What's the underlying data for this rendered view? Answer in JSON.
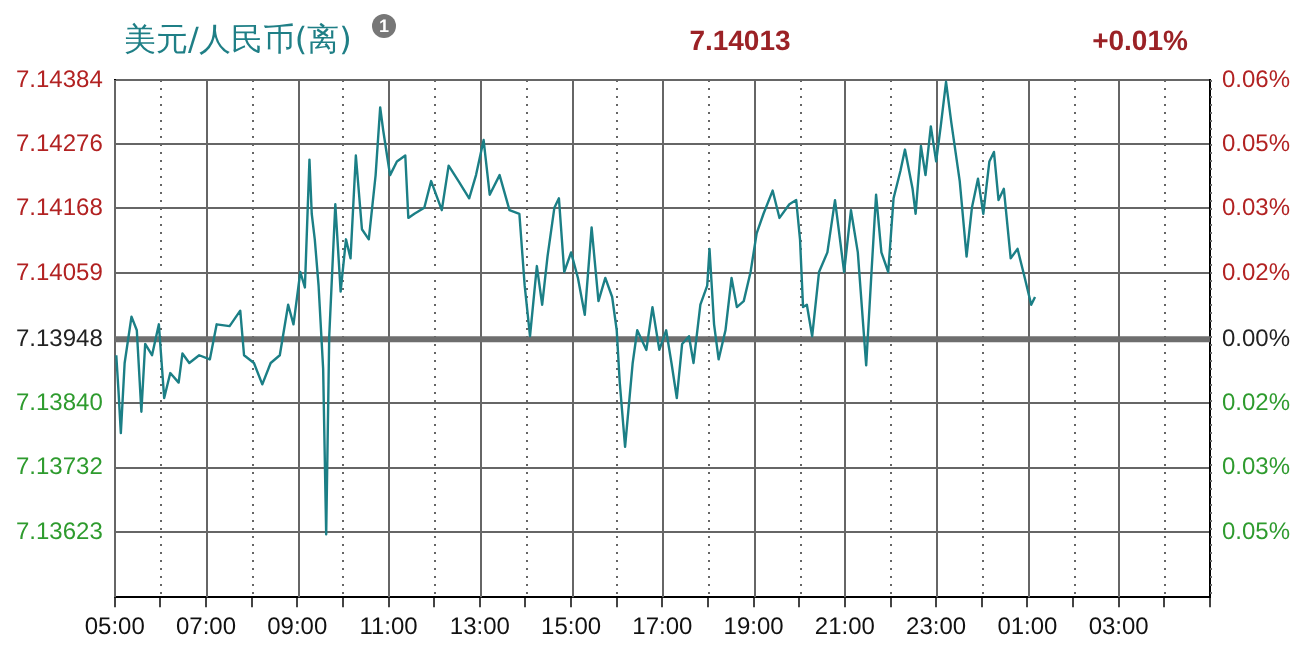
{
  "chart_data": {
    "type": "line",
    "title": "美元/人民币(离)",
    "annotations": [
      "1",
      "7.14013",
      "+0.01%"
    ],
    "x": [
      "--01-01T05:02",
      "--01-01T05:05",
      "--01-01T05:08",
      "--01-01T05:13",
      "--01-01T05:22",
      "--01-01T05:29",
      "--01-01T05:35",
      "--01-01T05:40",
      "--01-01T05:49",
      "--01-01T05:58",
      "--01-01T06:05",
      "--01-01T06:13",
      "--01-01T06:24",
      "--01-01T06:29",
      "--01-01T06:38",
      "--01-01T06:51",
      "--01-01T07:05",
      "--01-01T07:14",
      "--01-01T07:31",
      "--01-01T07:45",
      "--01-01T07:50",
      "--01-01T08:03",
      "--01-01T08:14",
      "--01-01T08:25",
      "--01-01T08:37",
      "--01-01T08:48",
      "--01-01T08:55",
      "--01-01T09:04",
      "--01-01T09:10",
      "--01-01T09:16",
      "--01-01T09:19",
      "--01-01T09:23",
      "--01-01T09:28",
      "--01-01T09:34",
      "--01-01T09:38",
      "--01-01T09:42",
      "--01-01T09:50",
      "--01-01T09:57",
      "--01-01T10:04",
      "--01-01T10:10",
      "--01-01T10:17",
      "--01-01T10:25",
      "--01-01T10:34",
      "--01-01T10:43",
      "--01-01T10:49",
      "--01-01T10:53",
      "--01-01T10:58",
      "--01-01T11:02",
      "--01-01T11:11",
      "--01-01T11:22",
      "--01-01T11:26",
      "--01-01T11:34",
      "--01-01T11:47",
      "--01-01T11:56",
      "--01-01T12:10",
      "--01-01T12:19",
      "--01-01T12:32",
      "--01-01T12:46",
      "--01-01T12:55",
      "--01-01T13:05",
      "--01-01T13:13",
      "--01-01T13:26",
      "--01-01T13:39",
      "--01-01T13:52",
      "--01-01T13:59",
      "--01-01T14:06",
      "--01-01T14:15",
      "--01-01T14:22",
      "--01-01T14:29",
      "--01-01T14:38",
      "--01-01T14:44",
      "--01-01T14:51",
      "--01-01T15:00",
      "--01-01T15:09",
      "--01-01T15:18",
      "--01-01T15:27",
      "--01-01T15:36",
      "--01-01T15:45",
      "--01-01T15:54",
      "--01-01T16:00",
      "--01-01T16:04",
      "--01-01T16:11",
      "--01-01T16:21",
      "--01-01T16:27",
      "--01-01T16:39",
      "--01-01T16:47",
      "--01-01T16:56",
      "--01-01T17:05",
      "--01-01T17:12",
      "--01-01T17:19",
      "--01-01T17:26",
      "--01-01T17:35",
      "--01-01T17:41",
      "--01-01T17:50",
      "--01-01T17:59",
      "--01-01T18:02",
      "--01-01T18:08",
      "--01-01T18:14",
      "--01-01T18:23",
      "--01-01T18:31",
      "--01-01T18:38",
      "--01-01T18:47",
      "--01-01T18:56",
      "--01-01T19:04",
      "--01-01T19:13",
      "--01-01T19:25",
      "--01-01T19:34",
      "--01-01T19:47",
      "--01-01T19:56",
      "--01-01T20:01",
      "--01-01T20:05",
      "--01-01T20:10",
      "--01-01T20:17",
      "--01-01T20:26",
      "--01-01T20:37",
      "--01-01T20:47",
      "--01-01T20:59",
      "--01-01T21:08",
      "--01-01T21:17",
      "--01-01T21:28",
      "--01-01T21:35",
      "--01-01T21:41",
      "--01-01T21:48",
      "--01-01T21:57",
      "--01-01T22:04",
      "--01-01T22:13",
      "--01-01T22:19",
      "--01-01T22:29",
      "--01-01T22:33",
      "--01-01T22:40",
      "--01-01T22:46",
      "--01-01T22:53",
      "--01-01T23:00",
      "--01-01T23:06",
      "--01-01T23:13",
      "--01-01T23:20",
      "--01-01T23:31",
      "--01-01T23:40",
      "--01-01T23:47",
      "--01-01T23:55",
      "--01-02T00:02",
      "--01-02T00:10",
      "--01-02T00:16",
      "--01-02T00:22",
      "--01-02T00:29",
      "--01-02T00:38",
      "--01-02T00:47",
      "--01-02T00:56",
      "--01-02T01:05",
      "--01-02T01:10"
    ],
    "series": [
      {
        "color": "#1b7f86",
        "values": [
          7.13921,
          7.13859,
          7.1379,
          7.13908,
          7.13986,
          7.13963,
          7.13826,
          7.1394,
          7.13921,
          7.13973,
          7.13849,
          7.13891,
          7.13875,
          7.13924,
          7.13908,
          7.13921,
          7.13914,
          7.13973,
          7.1397,
          7.13996,
          7.13921,
          7.13908,
          7.13872,
          7.13908,
          7.13921,
          7.14006,
          7.13973,
          7.14061,
          7.14035,
          7.1425,
          7.14159,
          7.14116,
          7.14038,
          7.13898,
          7.1362,
          7.13953,
          7.14175,
          7.14028,
          7.14116,
          7.14084,
          7.14257,
          7.14133,
          7.14116,
          7.14224,
          7.14338,
          7.14299,
          7.14257,
          7.14224,
          7.14247,
          7.14257,
          7.14152,
          7.14159,
          7.14169,
          7.14214,
          7.14165,
          7.1424,
          7.14214,
          7.14185,
          7.14224,
          7.14283,
          7.14191,
          7.14224,
          7.14165,
          7.14159,
          7.14038,
          7.13953,
          7.14071,
          7.14006,
          7.14087,
          7.14169,
          7.14185,
          7.14061,
          7.14094,
          7.14051,
          7.13989,
          7.14136,
          7.14012,
          7.14051,
          7.14019,
          7.13963,
          7.13875,
          7.13767,
          7.13908,
          7.13963,
          7.1393,
          7.14002,
          7.1393,
          7.13963,
          7.13908,
          7.13849,
          7.1394,
          7.13953,
          7.13908,
          7.14006,
          7.14038,
          7.141,
          7.13973,
          7.13914,
          7.13963,
          7.14051,
          7.14002,
          7.14012,
          7.14061,
          7.14126,
          7.14159,
          7.14198,
          7.14152,
          7.14175,
          7.14182,
          7.14116,
          7.14002,
          7.14006,
          7.13953,
          7.14061,
          7.14094,
          7.14182,
          7.14061,
          7.14165,
          7.14094,
          7.13904,
          7.14061,
          7.14191,
          7.14094,
          7.14061,
          7.14185,
          7.14231,
          7.14267,
          7.14201,
          7.14159,
          7.14273,
          7.14224,
          7.14306,
          7.14247,
          7.14306,
          7.14381,
          7.14312,
          7.14214,
          7.14087,
          7.14169,
          7.14218,
          7.14159,
          7.14247,
          7.14263,
          7.14182,
          7.14201,
          7.14084,
          7.141,
          7.14054,
          7.14006,
          7.14019
        ]
      }
    ],
    "xlim": [
      "--01-01T05:00",
      "--01-02T05:00"
    ],
    "xticks": [
      {
        "value": "--01-01T05:00",
        "label": "05:00"
      },
      {
        "value": "--01-01T06:00",
        "label": null
      },
      {
        "value": "--01-01T07:00",
        "label": "07:00"
      },
      {
        "value": "--01-01T08:00",
        "label": null
      },
      {
        "value": "--01-01T09:00",
        "label": "09:00"
      },
      {
        "value": "--01-01T10:00",
        "label": null
      },
      {
        "value": "--01-01T11:00",
        "label": "11:00"
      },
      {
        "value": "--01-01T12:00",
        "label": null
      },
      {
        "value": "--01-01T13:00",
        "label": "13:00"
      },
      {
        "value": "--01-01T14:00",
        "label": null
      },
      {
        "value": "--01-01T15:00",
        "label": "15:00"
      },
      {
        "value": "--01-01T16:00",
        "label": null
      },
      {
        "value": "--01-01T17:00",
        "label": "17:00"
      },
      {
        "value": "--01-01T18:00",
        "label": null
      },
      {
        "value": "--01-01T19:00",
        "label": "19:00"
      },
      {
        "value": "--01-01T20:00",
        "label": null
      },
      {
        "value": "--01-01T21:00",
        "label": "21:00"
      },
      {
        "value": "--01-01T22:00",
        "label": null
      },
      {
        "value": "--01-01T23:00",
        "label": "23:00"
      },
      {
        "value": "--01-02T00:00",
        "label": null
      },
      {
        "value": "--01-02T01:00",
        "label": "01:00"
      },
      {
        "value": "--01-02T02:00",
        "label": null
      },
      {
        "value": "--01-02T03:00",
        "label": "03:00"
      },
      {
        "value": "--01-02T04:00",
        "label": null
      },
      {
        "value": "--01-02T05:00",
        "label": null
      }
    ],
    "ylim": [
      7.13514,
      7.14384
    ],
    "yticks": [
      7.14384,
      7.14276,
      7.14168,
      7.14059,
      7.13948,
      {
        "value": 7.1384,
        "label": "7.13840"
      },
      7.13732,
      7.13623
    ],
    "y2lim": [
      -0.0608,
      0.0611
    ],
    "y2ticks": [
      {
        "value": 0.0611,
        "label": "0.06%"
      },
      {
        "value": 0.0459,
        "label": "0.05%"
      },
      {
        "value": 0.0308,
        "label": "0.03%"
      },
      {
        "value": 0.0155,
        "label": "0.02%"
      },
      {
        "value": 0,
        "label": "0.00%"
      },
      {
        "value": -0.0151,
        "label": "0.02%"
      },
      {
        "value": -0.0303,
        "label": "0.03%"
      },
      {
        "value": -0.0455,
        "label": "0.05%"
      }
    ],
    "ref_lines": [
      {
        "axis": "y",
        "value": 7.13948,
        "color": "#6e6e6e"
      }
    ],
    "grid": true,
    "legend": false,
    "marker": "none",
    "line_style": "solid"
  }
}
